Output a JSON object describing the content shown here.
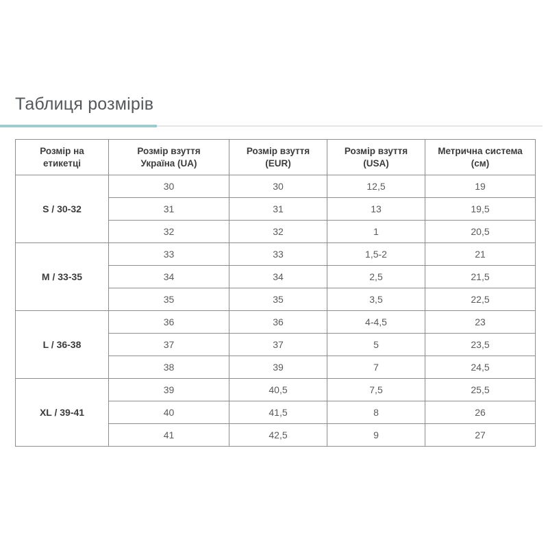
{
  "title": "Таблиця розмірів",
  "colors": {
    "title_text": "#54585b",
    "accent_teal_underline": "#a0cbcd",
    "divider_gray": "#e4e6e6",
    "table_border": "#8c8c8c",
    "header_text": "#3b3b3b",
    "cell_text": "#5a5a5a"
  },
  "table": {
    "headers": [
      {
        "line1": "Розмір на",
        "line2": "етикетці"
      },
      {
        "line1": "Розмір взуття",
        "line2": "Україна (UA)"
      },
      {
        "line1": "Розмір взуття",
        "line2": "(EUR)"
      },
      {
        "line1": "Розмір взуття",
        "line2": "(USA)"
      },
      {
        "line1": "Метрична система",
        "line2": "(см)"
      }
    ],
    "groups": [
      {
        "label": "S / 30-32",
        "rows": [
          [
            "30",
            "30",
            "12,5",
            "19"
          ],
          [
            "31",
            "31",
            "13",
            "19,5"
          ],
          [
            "32",
            "32",
            "1",
            "20,5"
          ]
        ]
      },
      {
        "label": "M / 33-35",
        "rows": [
          [
            "33",
            "33",
            "1,5-2",
            "21"
          ],
          [
            "34",
            "34",
            "2,5",
            "21,5"
          ],
          [
            "35",
            "35",
            "3,5",
            "22,5"
          ]
        ]
      },
      {
        "label": "L / 36-38",
        "rows": [
          [
            "36",
            "36",
            "4-4,5",
            "23"
          ],
          [
            "37",
            "37",
            "5",
            "23,5"
          ],
          [
            "38",
            "39",
            "7",
            "24,5"
          ]
        ]
      },
      {
        "label": "XL / 39-41",
        "rows": [
          [
            "39",
            "40,5",
            "7,5",
            "25,5"
          ],
          [
            "40",
            "41,5",
            "8",
            "26"
          ],
          [
            "41",
            "42,5",
            "9",
            "27"
          ]
        ]
      }
    ]
  }
}
